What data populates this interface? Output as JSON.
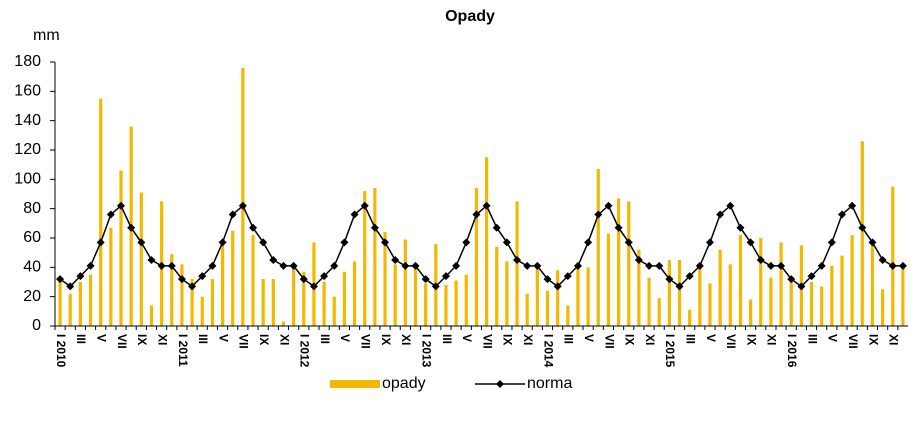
{
  "chart_data": {
    "type": "bar_line",
    "title": "Opady",
    "y_axis_label": "mm",
    "categories": [
      "I 2010",
      null,
      "III",
      null,
      "V",
      null,
      "VII",
      null,
      "IX",
      null,
      "XI",
      null,
      "I 2011",
      null,
      "III",
      null,
      "V",
      null,
      "VII",
      null,
      "IX",
      null,
      "XI",
      null,
      "I 2012",
      null,
      "III",
      null,
      "V",
      null,
      "VII",
      null,
      "IX",
      null,
      "XI",
      null,
      "I 2013",
      null,
      "III",
      null,
      "V",
      null,
      "VII",
      null,
      "IX",
      null,
      "XI",
      null,
      "I 2014",
      null,
      "III",
      null,
      "V",
      null,
      "VII",
      null,
      "IX",
      null,
      "XI",
      null,
      "I 2015",
      null,
      "III",
      null,
      "V",
      null,
      "VII",
      null,
      "IX",
      null,
      "XI",
      null,
      "I 2016",
      null,
      "III",
      null,
      "V",
      null,
      "VII",
      null,
      "IX",
      null,
      "XI",
      null
    ],
    "series": [
      {
        "name": "opady",
        "type": "bar",
        "color": "#f5b800",
        "values": [
          30,
          22,
          30,
          35,
          155,
          67,
          106,
          136,
          91,
          14,
          85,
          49,
          42,
          32,
          20,
          32,
          55,
          65,
          176,
          62,
          32,
          32,
          3,
          40,
          37,
          57,
          30,
          20,
          37,
          44,
          92,
          94,
          64,
          42,
          59,
          41,
          29,
          56,
          28,
          31,
          35,
          94,
          115,
          54,
          44,
          85,
          22,
          40,
          24,
          38,
          14,
          41,
          40,
          107,
          63,
          87,
          85,
          52,
          33,
          19,
          45,
          45,
          11,
          40,
          29,
          52,
          42,
          62,
          18,
          60,
          33,
          57,
          30,
          55,
          30,
          27,
          41,
          48,
          62,
          126,
          58,
          25,
          95,
          40
        ]
      },
      {
        "name": "norma",
        "type": "line",
        "color": "#000000",
        "values": [
          32,
          27,
          34,
          41,
          57,
          76,
          82,
          67,
          57,
          45,
          41,
          41,
          32,
          27,
          34,
          41,
          57,
          76,
          82,
          67,
          57,
          45,
          41,
          41,
          32,
          27,
          34,
          41,
          57,
          76,
          82,
          67,
          57,
          45,
          41,
          41,
          32,
          27,
          34,
          41,
          57,
          76,
          82,
          67,
          57,
          45,
          41,
          41,
          32,
          27,
          34,
          41,
          57,
          76,
          82,
          67,
          57,
          45,
          41,
          41,
          32,
          27,
          34,
          41,
          57,
          76,
          82,
          67,
          57,
          45,
          41,
          41,
          32,
          27,
          34,
          41,
          57,
          76,
          82,
          67,
          57,
          45,
          41,
          41
        ]
      }
    ],
    "ylim": [
      0,
      180
    ],
    "yticks": [
      0,
      20,
      40,
      60,
      80,
      100,
      120,
      140,
      160,
      180
    ],
    "grid": false,
    "legend": "bottom"
  }
}
